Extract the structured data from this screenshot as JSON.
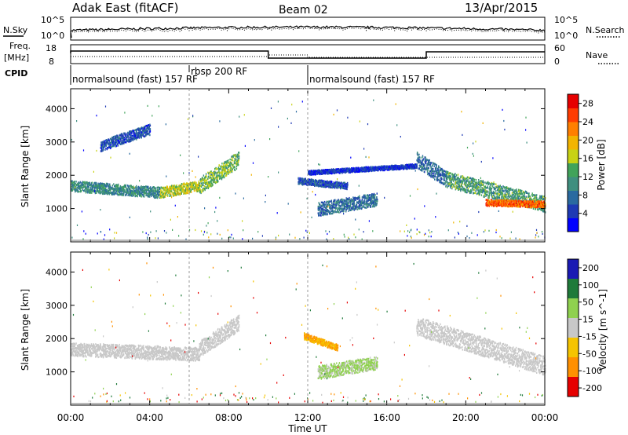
{
  "header": {
    "station": "Adak East (fitACF)",
    "beam": "Beam 02",
    "date": "13/Apr/2015"
  },
  "noise_panel": {
    "left_label": "N.Sky",
    "right_label": "N.Search",
    "left_ticks": [
      "10^5",
      "10^0"
    ],
    "right_ticks": [
      "10^5",
      "10^0"
    ]
  },
  "freq_panel": {
    "left_label_1": "Freq.",
    "left_label_2": "[MHz]",
    "left_ticks": [
      "18",
      "8"
    ],
    "right_label": "Nave",
    "right_ticks": [
      "60",
      "0"
    ],
    "cpid_label": "CPID",
    "cpid_segments": [
      {
        "text": "normalsound (fast) 157 RF",
        "start": 0
      },
      {
        "text": "rbsp 200 RF",
        "start": 6
      },
      {
        "text": "normalsound (fast) 157 RF",
        "start": 12
      }
    ]
  },
  "chart_data": [
    {
      "type": "heatmap",
      "name": "power",
      "title": "",
      "xlabel": "Time UT",
      "ylabel": "Slant Range [km]",
      "xlim": [
        0,
        24
      ],
      "ylim": [
        0,
        4600
      ],
      "x_ticks": [
        "00:00",
        "04:00",
        "08:00",
        "12:00",
        "16:00",
        "20:00",
        "00:00"
      ],
      "y_ticks": [
        1000,
        2000,
        3000,
        4000
      ],
      "colorbar": {
        "label": "Power [dB]",
        "ticks": [
          "4",
          "8",
          "12",
          "16",
          "20",
          "24",
          "28"
        ],
        "range": [
          0,
          30
        ]
      },
      "bands": [
        {
          "t0": 0.0,
          "t1": 4.5,
          "range_start": 1700,
          "range_end": 1500,
          "width": 200,
          "power": 10
        },
        {
          "t0": 4.5,
          "t1": 6.5,
          "range_start": 1500,
          "range_end": 1700,
          "width": 200,
          "power": 16
        },
        {
          "t0": 6.5,
          "t1": 8.5,
          "range_start": 1700,
          "range_end": 2500,
          "width": 300,
          "power": 14
        },
        {
          "t0": 1.5,
          "t1": 4.0,
          "range_start": 2900,
          "range_end": 3400,
          "width": 200,
          "power": 6
        },
        {
          "t0": 11.5,
          "t1": 14.0,
          "range_start": 1850,
          "range_end": 1700,
          "width": 120,
          "power": 6
        },
        {
          "t0": 12.5,
          "t1": 15.5,
          "range_start": 1000,
          "range_end": 1300,
          "width": 250,
          "power": 8
        },
        {
          "t0": 12.0,
          "t1": 17.5,
          "range_start": 2100,
          "range_end": 2300,
          "width": 80,
          "power": 4
        },
        {
          "t0": 17.5,
          "t1": 19.0,
          "range_start": 2500,
          "range_end": 1900,
          "width": 300,
          "power": 8
        },
        {
          "t0": 19.0,
          "t1": 24.0,
          "range_start": 1900,
          "range_end": 1150,
          "width": 300,
          "power": 12
        },
        {
          "t0": 21.0,
          "t1": 24.0,
          "range_start": 1200,
          "range_end": 1150,
          "width": 120,
          "power": 24
        }
      ]
    },
    {
      "type": "heatmap",
      "name": "velocity",
      "title": "",
      "xlabel": "Time UT",
      "ylabel": "Slant Range [km]",
      "xlim": [
        0,
        24
      ],
      "ylim": [
        0,
        4600
      ],
      "x_ticks": [
        "00:00",
        "04:00",
        "08:00",
        "12:00",
        "16:00",
        "20:00",
        "00:00"
      ],
      "y_ticks": [
        1000,
        2000,
        3000,
        4000
      ],
      "colorbar": {
        "label": "Velocity [m s^-1]",
        "ticks": [
          "200",
          "100",
          "50",
          "15",
          "-15",
          "-50",
          "-100",
          "-200"
        ]
      },
      "bands": [
        {
          "t0": 0.0,
          "t1": 6.5,
          "range_start": 1700,
          "range_end": 1550,
          "width": 250,
          "velocity": 0
        },
        {
          "t0": 6.5,
          "t1": 8.5,
          "range_start": 1700,
          "range_end": 2500,
          "width": 300,
          "velocity": 0
        },
        {
          "t0": 11.8,
          "t1": 13.5,
          "range_start": 2100,
          "range_end": 1750,
          "width": 120,
          "velocity": -50
        },
        {
          "t0": 12.5,
          "t1": 15.5,
          "range_start": 1000,
          "range_end": 1300,
          "width": 250,
          "velocity": 30
        },
        {
          "t0": 17.5,
          "t1": 24.0,
          "range_start": 2400,
          "range_end": 1200,
          "width": 350,
          "velocity": 0
        }
      ]
    }
  ]
}
